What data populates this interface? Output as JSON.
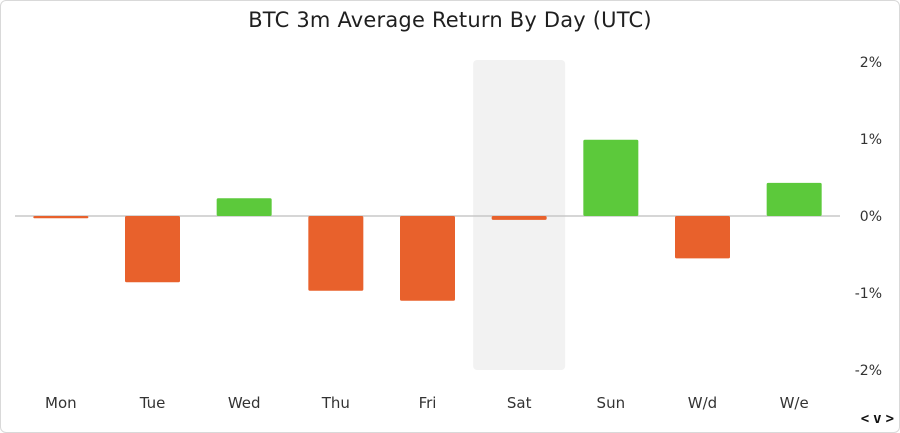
{
  "chart_data": {
    "type": "bar",
    "title": "BTC 3m Average Return By Day (UTC)",
    "categories": [
      "Mon",
      "Tue",
      "Wed",
      "Thu",
      "Fri",
      "Sat",
      "Sun",
      "W/d",
      "W/e"
    ],
    "values": [
      -0.03,
      -0.86,
      0.23,
      -0.97,
      -1.1,
      -0.05,
      0.99,
      -0.55,
      0.43
    ],
    "highlighted_category": "Sat",
    "yticks": [
      2,
      1,
      0,
      -1,
      -2
    ],
    "ytick_labels": [
      "2%",
      "1%",
      "0%",
      "-1%",
      "-2%"
    ],
    "ylim": [
      -2,
      2
    ],
    "grid": false,
    "colors": {
      "positive": "#5cc93b",
      "negative": "#e8612c",
      "highlight": "#f2f2f2",
      "zero_line": "#c8c8c8"
    }
  },
  "nav": {
    "prev": "<",
    "next": ">",
    "toggle": "v"
  }
}
